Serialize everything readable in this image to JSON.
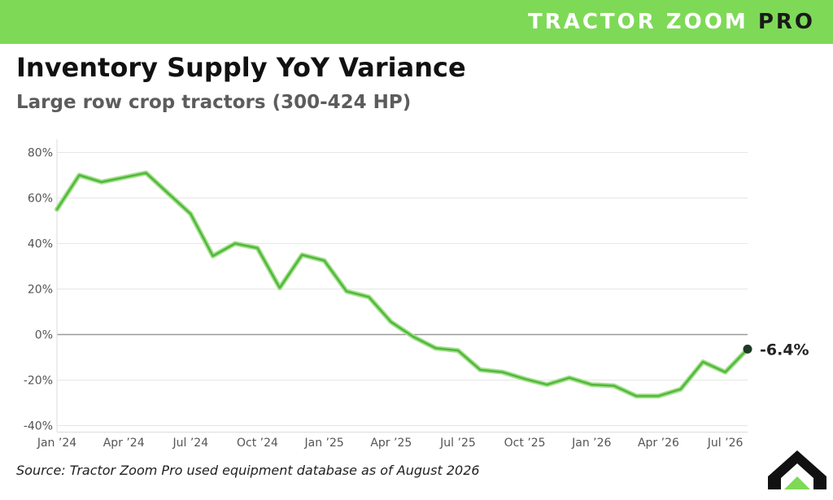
{
  "header": {
    "brand_main": "TRACTOR ZOOM",
    "brand_pro": "PRO"
  },
  "title": "Inventory Supply YoY Variance",
  "subtitle": "Large row crop tractors (300-424 HP)",
  "source": "Source: Tractor Zoom Pro used equipment database as of August 2026",
  "colors": {
    "brand_green": "#7ed957",
    "line": "#4fb83a",
    "line_glow": "#a6e08f",
    "end_dot": "#1f3a25"
  },
  "logo": "tractor-zoom-logo",
  "chart_data": {
    "type": "line",
    "x": [
      "2024-01",
      "2024-02",
      "2024-03",
      "2024-04",
      "2024-05",
      "2024-06",
      "2024-07",
      "2024-08",
      "2024-09",
      "2024-10",
      "2024-11",
      "2024-12",
      "2025-01",
      "2025-02",
      "2025-03",
      "2025-04",
      "2025-05",
      "2025-06",
      "2025-07",
      "2025-08",
      "2025-09",
      "2025-10",
      "2025-11",
      "2025-12",
      "2026-01",
      "2026-02",
      "2026-03",
      "2026-04",
      "2026-05",
      "2026-06",
      "2026-07",
      "2026-08"
    ],
    "values": [
      55,
      70,
      67,
      69,
      71,
      62,
      53,
      34.5,
      40,
      38,
      20.5,
      35,
      32.5,
      19,
      16.5,
      5.5,
      -1,
      -6,
      -7,
      -15.5,
      -16.5,
      -19.5,
      -22,
      -19,
      -22,
      -22.5,
      -27,
      -27,
      -24,
      -12,
      -16.5,
      -6.4
    ],
    "xticks": [
      "Jan ’24",
      "Apr ’24",
      "Jul ’24",
      "Oct ’24",
      "Jan ’25",
      "Apr ’25",
      "Jul ’25",
      "Oct ’25",
      "Jan ’26",
      "Apr ’26",
      "Jul ’26"
    ],
    "yticks": [
      "80%",
      "60%",
      "40%",
      "20%",
      "0%",
      "-20%",
      "-40%"
    ],
    "ytick_values": [
      80,
      60,
      40,
      20,
      0,
      -20,
      -40
    ],
    "ylim": [
      -40,
      80
    ],
    "end_label": "-6.4%",
    "grid": true,
    "zero_line": true
  }
}
